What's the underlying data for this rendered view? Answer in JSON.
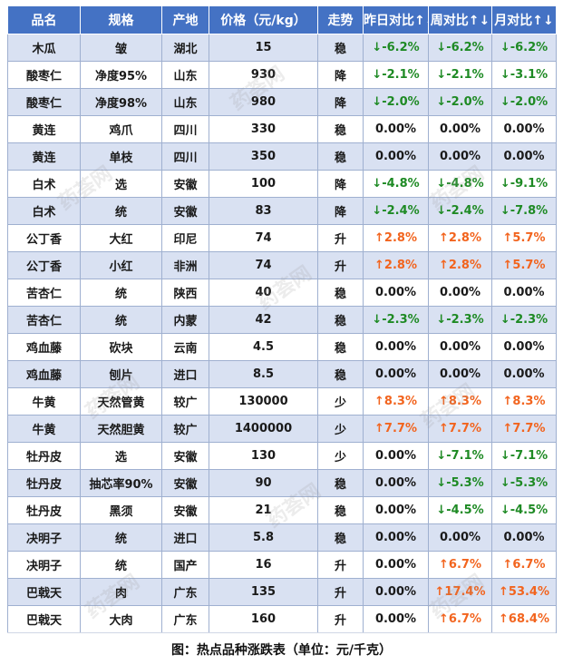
{
  "columns": [
    "品名",
    "规格",
    "产地",
    "价格（元/kg）",
    "走势",
    "昨日对比↑↓",
    "周对比↑↓",
    "月对比↑↓"
  ],
  "rows": [
    {
      "name": "木瓜",
      "spec": "皱",
      "origin": "湖北",
      "price": "15",
      "trend": "稳",
      "day": "↓-6.2%",
      "week": "↓-6.2%",
      "month": "↓-6.2%",
      "dayDir": "down",
      "weekDir": "down",
      "monthDir": "down"
    },
    {
      "name": "酸枣仁",
      "spec": "净度95%",
      "origin": "山东",
      "price": "930",
      "trend": "降",
      "day": "↓-2.1%",
      "week": "↓-2.1%",
      "month": "↓-3.1%",
      "dayDir": "down",
      "weekDir": "down",
      "monthDir": "down"
    },
    {
      "name": "酸枣仁",
      "spec": "净度98%",
      "origin": "山东",
      "price": "980",
      "trend": "降",
      "day": "↓-2.0%",
      "week": "↓-2.0%",
      "month": "↓-2.0%",
      "dayDir": "down",
      "weekDir": "down",
      "monthDir": "down"
    },
    {
      "name": "黄连",
      "spec": "鸡爪",
      "origin": "四川",
      "price": "330",
      "trend": "稳",
      "day": "0.00%",
      "week": "0.00%",
      "month": "0.00%",
      "dayDir": "flat",
      "weekDir": "flat",
      "monthDir": "flat"
    },
    {
      "name": "黄连",
      "spec": "单枝",
      "origin": "四川",
      "price": "350",
      "trend": "稳",
      "day": "0.00%",
      "week": "0.00%",
      "month": "0.00%",
      "dayDir": "flat",
      "weekDir": "flat",
      "monthDir": "flat"
    },
    {
      "name": "白术",
      "spec": "选",
      "origin": "安徽",
      "price": "100",
      "trend": "降",
      "day": "↓-4.8%",
      "week": "↓-4.8%",
      "month": "↓-9.1%",
      "dayDir": "down",
      "weekDir": "down",
      "monthDir": "down"
    },
    {
      "name": "白术",
      "spec": "统",
      "origin": "安徽",
      "price": "83",
      "trend": "降",
      "day": "↓-2.4%",
      "week": "↓-2.4%",
      "month": "↓-7.8%",
      "dayDir": "down",
      "weekDir": "down",
      "monthDir": "down"
    },
    {
      "name": "公丁香",
      "spec": "大红",
      "origin": "印尼",
      "price": "74",
      "trend": "升",
      "day": "↑2.8%",
      "week": "↑2.8%",
      "month": "↑5.7%",
      "dayDir": "up",
      "weekDir": "up",
      "monthDir": "up"
    },
    {
      "name": "公丁香",
      "spec": "小红",
      "origin": "非洲",
      "price": "74",
      "trend": "升",
      "day": "↑2.8%",
      "week": "↑2.8%",
      "month": "↑5.7%",
      "dayDir": "up",
      "weekDir": "up",
      "monthDir": "up"
    },
    {
      "name": "苦杏仁",
      "spec": "统",
      "origin": "陕西",
      "price": "40",
      "trend": "稳",
      "day": "0.00%",
      "week": "0.00%",
      "month": "0.00%",
      "dayDir": "flat",
      "weekDir": "flat",
      "monthDir": "flat"
    },
    {
      "name": "苦杏仁",
      "spec": "统",
      "origin": "内蒙",
      "price": "42",
      "trend": "稳",
      "day": "↓-2.3%",
      "week": "↓-2.3%",
      "month": "↓-2.3%",
      "dayDir": "down",
      "weekDir": "down",
      "monthDir": "down"
    },
    {
      "name": "鸡血藤",
      "spec": "砍块",
      "origin": "云南",
      "price": "4.5",
      "trend": "稳",
      "day": "0.00%",
      "week": "0.00%",
      "month": "0.00%",
      "dayDir": "flat",
      "weekDir": "flat",
      "monthDir": "flat"
    },
    {
      "name": "鸡血藤",
      "spec": "刨片",
      "origin": "进口",
      "price": "8.5",
      "trend": "稳",
      "day": "0.00%",
      "week": "0.00%",
      "month": "0.00%",
      "dayDir": "flat",
      "weekDir": "flat",
      "monthDir": "flat"
    },
    {
      "name": "牛黄",
      "spec": "天然管黄",
      "origin": "较广",
      "price": "130000",
      "trend": "少",
      "day": "↑8.3%",
      "week": "↑8.3%",
      "month": "↑8.3%",
      "dayDir": "up",
      "weekDir": "up",
      "monthDir": "up"
    },
    {
      "name": "牛黄",
      "spec": "天然胆黄",
      "origin": "较广",
      "price": "1400000",
      "trend": "少",
      "day": "↑7.7%",
      "week": "↑7.7%",
      "month": "↑7.7%",
      "dayDir": "up",
      "weekDir": "up",
      "monthDir": "up"
    },
    {
      "name": "牡丹皮",
      "spec": "选",
      "origin": "安徽",
      "price": "130",
      "trend": "少",
      "day": "0.00%",
      "week": "↓-7.1%",
      "month": "↓-7.1%",
      "dayDir": "flat",
      "weekDir": "down",
      "monthDir": "down"
    },
    {
      "name": "牡丹皮",
      "spec": "抽芯率90%",
      "origin": "安徽",
      "price": "90",
      "trend": "稳",
      "day": "0.00%",
      "week": "↓-5.3%",
      "month": "↓-5.3%",
      "dayDir": "flat",
      "weekDir": "down",
      "monthDir": "down"
    },
    {
      "name": "牡丹皮",
      "spec": "黑须",
      "origin": "安徽",
      "price": "21",
      "trend": "稳",
      "day": "0.00%",
      "week": "↓-4.5%",
      "month": "↓-4.5%",
      "dayDir": "flat",
      "weekDir": "down",
      "monthDir": "down"
    },
    {
      "name": "决明子",
      "spec": "统",
      "origin": "进口",
      "price": "5.8",
      "trend": "稳",
      "day": "0.00%",
      "week": "0.00%",
      "month": "0.00%",
      "dayDir": "flat",
      "weekDir": "flat",
      "monthDir": "flat"
    },
    {
      "name": "决明子",
      "spec": "统",
      "origin": "国产",
      "price": "16",
      "trend": "升",
      "day": "0.00%",
      "week": "↑6.7%",
      "month": "↑6.7%",
      "dayDir": "flat",
      "weekDir": "up",
      "monthDir": "up"
    },
    {
      "name": "巴戟天",
      "spec": "肉",
      "origin": "广东",
      "price": "135",
      "trend": "升",
      "day": "0.00%",
      "week": "↑17.4%",
      "month": "↑53.4%",
      "dayDir": "flat",
      "weekDir": "up",
      "monthDir": "up"
    },
    {
      "name": "巴戟天",
      "spec": "大肉",
      "origin": "广东",
      "price": "160",
      "trend": "升",
      "day": "0.00%",
      "week": "↑6.7%",
      "month": "↑68.4%",
      "dayDir": "flat",
      "weekDir": "up",
      "monthDir": "up"
    }
  ],
  "caption": "图：热点品种涨跌表（单位：元/千克）",
  "watermark": "药荟网",
  "colors": {
    "header": "#4472c4",
    "band": "#d9e1f2",
    "up": "#f2641e",
    "down": "#1e8a24"
  }
}
